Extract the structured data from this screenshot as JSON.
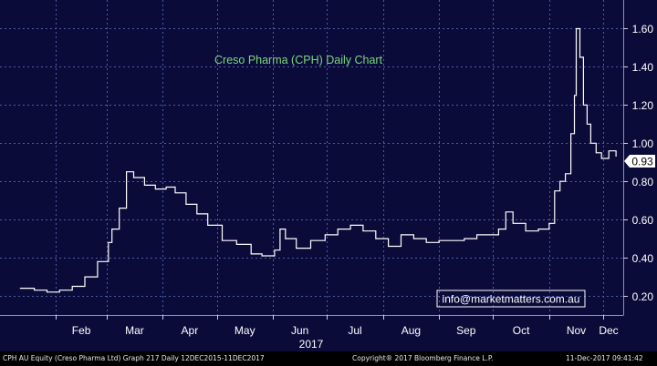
{
  "chart_data": {
    "type": "line",
    "style": "ohlc-bars",
    "title": "Creso Pharma (CPH) Daily Chart",
    "year_label": "2017",
    "watermark": "info@marketmatters.com.au",
    "last_price_label": "0.93",
    "last_price": 0.93,
    "ylim": [
      0.1,
      1.75
    ],
    "y_ticks": [
      {
        "value": 1.6,
        "label": "1.60"
      },
      {
        "value": 1.4,
        "label": "1.40"
      },
      {
        "value": 1.2,
        "label": "1.20"
      },
      {
        "value": 1.0,
        "label": "1.00"
      },
      {
        "value": 0.8,
        "label": "0.80"
      },
      {
        "value": 0.6,
        "label": "0.60"
      },
      {
        "value": 0.4,
        "label": "0.40"
      },
      {
        "value": 0.2,
        "label": "0.20"
      }
    ],
    "x_ticks": [
      "Feb",
      "Mar",
      "Apr",
      "May",
      "Jun",
      "Jul",
      "Aug",
      "Sep",
      "Oct",
      "Nov",
      "Dec"
    ],
    "grid": true,
    "x": [
      "2017-01-12",
      "2017-01-20",
      "2017-01-27",
      "2017-02-03",
      "2017-02-10",
      "2017-02-17",
      "2017-02-24",
      "2017-03-02",
      "2017-03-04",
      "2017-03-08",
      "2017-03-12",
      "2017-03-16",
      "2017-03-22",
      "2017-03-28",
      "2017-04-03",
      "2017-04-08",
      "2017-04-14",
      "2017-04-20",
      "2017-04-26",
      "2017-05-04",
      "2017-05-12",
      "2017-05-20",
      "2017-05-26",
      "2017-06-02",
      "2017-06-05",
      "2017-06-08",
      "2017-06-14",
      "2017-06-22",
      "2017-06-30",
      "2017-07-07",
      "2017-07-14",
      "2017-07-21",
      "2017-07-28",
      "2017-08-04",
      "2017-08-11",
      "2017-08-18",
      "2017-08-25",
      "2017-09-01",
      "2017-09-08",
      "2017-09-15",
      "2017-09-22",
      "2017-09-29",
      "2017-10-04",
      "2017-10-08",
      "2017-10-12",
      "2017-10-19",
      "2017-10-26",
      "2017-11-01",
      "2017-11-04",
      "2017-11-07",
      "2017-11-10",
      "2017-11-13",
      "2017-11-15",
      "2017-11-16",
      "2017-11-18",
      "2017-11-20",
      "2017-11-22",
      "2017-11-24",
      "2017-11-27",
      "2017-11-30",
      "2017-12-04",
      "2017-12-08"
    ],
    "y": [
      0.24,
      0.23,
      0.22,
      0.23,
      0.25,
      0.3,
      0.38,
      0.48,
      0.55,
      0.66,
      0.85,
      0.82,
      0.78,
      0.76,
      0.77,
      0.74,
      0.68,
      0.63,
      0.57,
      0.49,
      0.47,
      0.42,
      0.41,
      0.44,
      0.55,
      0.5,
      0.45,
      0.49,
      0.52,
      0.55,
      0.57,
      0.54,
      0.5,
      0.46,
      0.52,
      0.5,
      0.48,
      0.49,
      0.49,
      0.5,
      0.52,
      0.52,
      0.55,
      0.64,
      0.58,
      0.54,
      0.55,
      0.58,
      0.75,
      0.8,
      0.84,
      1.05,
      1.25,
      1.6,
      1.45,
      1.2,
      1.1,
      1.0,
      0.95,
      0.92,
      0.96,
      0.93
    ]
  },
  "footer": {
    "left": "CPH AU Equity (Creso Pharma Ltd) Graph 217  Daily 12DEC2015-11DEC2017",
    "center": "Copyright® 2017 Bloomberg Finance L.P.",
    "right": "11-Dec-2017 09:41:42"
  },
  "colors": {
    "background": "#0b0b3a",
    "grid": "#4b5ea8",
    "price_line": "#ffffff",
    "title": "#7cd67c",
    "watermark": "#ffffff"
  }
}
